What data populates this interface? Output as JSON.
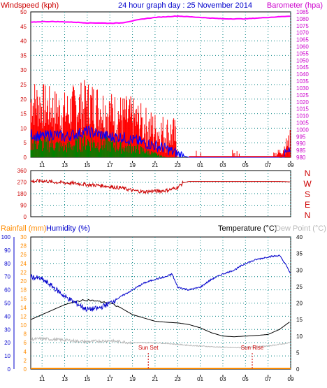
{
  "header": {
    "left_title": "Windspeed (kph)",
    "center_title": "24 hour graph day : 25 November 2014",
    "right_title": "Barometer (hpa)"
  },
  "x_ticks": [
    "11",
    "13",
    "15",
    "17",
    "19",
    "21",
    "23",
    "01",
    "03",
    "05",
    "07",
    "09"
  ],
  "colors": {
    "windspeed": "#ff0000",
    "wind_avg": "#0000ff",
    "wind_low": "#008000",
    "barometer": "#ff00ff",
    "wind_dir": "#cc0000",
    "humidity": "#0000cc",
    "temperature": "#000000",
    "dewpoint": "#b8b8b8",
    "rainfall": "#ff8c00",
    "grid": "#008080",
    "axis_blue": "#0000cc",
    "axis_magenta": "#cc00cc",
    "axis_red": "#cc0000"
  },
  "chart_data": [
    {
      "type": "line",
      "name": "wind-barometer",
      "y_left": {
        "label": "Windspeed (kph)",
        "min": 0,
        "max": 50,
        "ticks": [
          0,
          5,
          10,
          15,
          20,
          25,
          30,
          35,
          40,
          45,
          50
        ]
      },
      "y_right": {
        "label": "Barometer (hpa)",
        "min": 980,
        "max": 1085,
        "ticks": [
          980,
          985,
          990,
          995,
          1000,
          1005,
          1010,
          1015,
          1020,
          1025,
          1030,
          1035,
          1040,
          1045,
          1050,
          1055,
          1060,
          1065,
          1070,
          1075,
          1080,
          1085
        ]
      },
      "windspeed": {
        "x": [
          10,
          11,
          12,
          13,
          14,
          15,
          16,
          17,
          18,
          19,
          20,
          20.5,
          21,
          22,
          22.5,
          23,
          24,
          26,
          27,
          28,
          29,
          30,
          31,
          32,
          32.5,
          33
        ],
        "gust_max": [
          28,
          26,
          24,
          23,
          26,
          27,
          26,
          23,
          22,
          21,
          18,
          17,
          16,
          15,
          15,
          12,
          4,
          3,
          2,
          1,
          1,
          0,
          1,
          3,
          6,
          10
        ],
        "gust_min": [
          10,
          9,
          8,
          7,
          8,
          9,
          8,
          7,
          6,
          5,
          4,
          3,
          2,
          1,
          1,
          0,
          0,
          0,
          0,
          0,
          0,
          0,
          0,
          0,
          1,
          2
        ]
      },
      "wind_avg": {
        "x": [
          10,
          11,
          12,
          13,
          14,
          15,
          16,
          17,
          18,
          19,
          20,
          21,
          22,
          22.5,
          23,
          24,
          25,
          26,
          27,
          28,
          29,
          30,
          31,
          32,
          33
        ],
        "values": [
          8,
          7,
          8,
          7,
          8,
          9,
          8,
          7,
          7,
          6,
          5,
          4,
          3,
          2,
          1,
          0,
          0,
          0,
          0,
          0,
          0,
          0,
          0,
          0,
          2
        ]
      },
      "wind_low": {
        "x": [
          10,
          11,
          12,
          13,
          14,
          15,
          16,
          17,
          18,
          19,
          20,
          21,
          22
        ],
        "values": [
          5,
          4,
          4,
          3,
          4,
          5,
          4,
          4,
          3,
          3,
          2,
          1,
          0
        ]
      },
      "barometer": {
        "x": [
          10,
          11,
          12,
          13,
          14,
          15,
          16,
          17,
          18,
          19,
          20,
          21,
          22,
          23,
          24,
          25,
          26,
          27,
          28,
          29,
          30,
          31,
          32,
          33
        ],
        "values": [
          1077.5,
          1078,
          1078,
          1077.8,
          1077.5,
          1077,
          1077,
          1076.8,
          1077,
          1078.5,
          1080,
          1081,
          1081.5,
          1082,
          1081.5,
          1081,
          1080.5,
          1080,
          1080,
          1080,
          1080.5,
          1081,
          1081.5,
          1082
        ]
      }
    },
    {
      "type": "line",
      "name": "wind-direction",
      "y_left": {
        "min": 0,
        "max": 360,
        "ticks": [
          0,
          90,
          180,
          270,
          360
        ]
      },
      "y_right_labels": [
        "N",
        "W",
        "S",
        "E",
        "N"
      ],
      "x": [
        10,
        11,
        12,
        13,
        14,
        15,
        16,
        17,
        18,
        19,
        20,
        21,
        22,
        22.5,
        23,
        23.5,
        24,
        26,
        28,
        30,
        32,
        33
      ],
      "values": [
        275,
        280,
        270,
        265,
        260,
        250,
        245,
        235,
        225,
        205,
        195,
        200,
        205,
        215,
        230,
        265,
        275,
        275,
        275,
        275,
        275,
        272
      ]
    },
    {
      "type": "line",
      "name": "temp-humidity",
      "header": {
        "rainfall": "Rainfall (mm)",
        "humidity": "Humidity (%)",
        "temperature": "Temperature (°C)",
        "dewpoint": "Dew Point (°C)"
      },
      "y_humidity": {
        "min": 0,
        "max": 100,
        "ticks": [
          0,
          10,
          20,
          30,
          40,
          50,
          60,
          70,
          80,
          90,
          100
        ]
      },
      "y_rainfall": {
        "min": 0,
        "max": 30,
        "ticks": [
          0,
          2,
          4,
          6,
          8,
          10,
          12,
          14,
          16,
          18,
          20,
          22,
          24,
          26,
          28,
          30
        ]
      },
      "y_temperature": {
        "min": 0,
        "max": 40,
        "ticks": [
          0,
          5,
          10,
          15,
          20,
          25,
          30,
          35,
          40
        ]
      },
      "humidity": {
        "x": [
          10,
          11,
          12,
          13,
          14,
          15,
          16,
          17,
          18,
          19,
          20,
          21,
          22,
          22.5,
          23,
          24,
          25,
          26,
          27,
          28,
          29,
          30,
          31,
          32,
          32.5,
          33
        ],
        "values": [
          70,
          68,
          62,
          55,
          50,
          45,
          46,
          50,
          55,
          60,
          65,
          68,
          70,
          72,
          62,
          60,
          62,
          68,
          72,
          75,
          80,
          83,
          85,
          86,
          80,
          72
        ]
      },
      "temperature": {
        "x": [
          10,
          11,
          12,
          13,
          14,
          15,
          16,
          17,
          18,
          19,
          20,
          21,
          22,
          23,
          24,
          25,
          26,
          27,
          28,
          29,
          30,
          31,
          32,
          33
        ],
        "values": [
          15,
          16.5,
          18,
          19.5,
          20.5,
          21,
          20.5,
          20,
          18.5,
          16.5,
          15.5,
          14.5,
          14.2,
          14,
          13.5,
          12.5,
          11,
          10,
          9.8,
          10,
          10.2,
          10.5,
          12,
          14.5
        ]
      },
      "dewpoint": {
        "x": [
          10,
          11,
          12,
          13,
          14,
          15,
          16,
          17,
          18,
          19,
          20,
          21,
          22,
          23,
          24,
          25,
          26,
          27,
          28,
          29,
          30,
          31,
          32,
          33
        ],
        "values": [
          9,
          9.2,
          9,
          8.8,
          8.5,
          8.3,
          8.5,
          8.6,
          8.3,
          8,
          8,
          8,
          7.8,
          7.5,
          7.2,
          7,
          6.8,
          6.6,
          6.5,
          6.5,
          6.8,
          7,
          7.5,
          8
        ]
      },
      "rainfall": {
        "x": [
          10,
          33
        ],
        "values": [
          0,
          0
        ]
      },
      "annotations": [
        {
          "text": "Sun Set",
          "x": 20.4
        },
        {
          "text": "Sun Rise",
          "x": 29.6
        }
      ]
    }
  ]
}
